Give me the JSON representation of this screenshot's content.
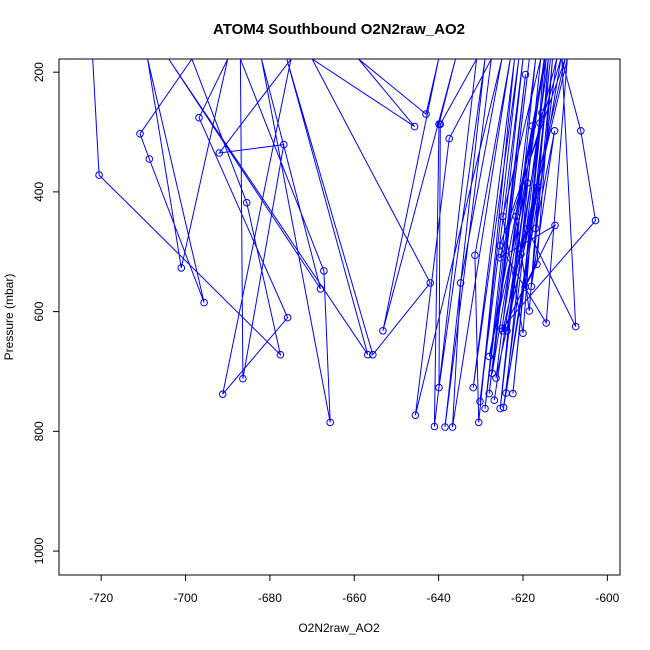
{
  "chart_data": {
    "type": "line",
    "title": "ATOM4 Southbound O2N2raw_AO2",
    "xlabel": "O2N2raw_AO2",
    "ylabel": "Pressure (mbar)",
    "xlim": [
      -730,
      -597
    ],
    "ylim": [
      1040,
      178
    ],
    "y_reversed": true,
    "x_ticks": [
      -720,
      -700,
      -680,
      -660,
      -640,
      -620,
      -600
    ],
    "y_ticks": [
      200,
      400,
      600,
      800,
      1000
    ],
    "grid": false,
    "series_color": "#0000ff",
    "series": [
      {
        "points": [
          [
            -722.0,
            178
          ],
          [
            -720.5,
            372
          ],
          [
            -677.5,
            672
          ],
          [
            -685.5,
            418
          ],
          [
            -698.5,
            178
          ],
          [
            -710.8,
            303
          ],
          [
            -708.6,
            345
          ],
          [
            -695.6,
            585
          ],
          [
            -709.0,
            178
          ],
          [
            -701.0,
            527
          ],
          [
            -690.0,
            178
          ],
          [
            -696.8,
            276
          ],
          [
            -675.8,
            610
          ],
          [
            -691.2,
            738
          ],
          [
            -675.0,
            178
          ],
          [
            -692.0,
            335
          ],
          [
            -676.7,
            321
          ],
          [
            -686.4,
            712
          ],
          [
            -687.0,
            178
          ],
          [
            -667.2,
            532
          ],
          [
            -665.7,
            785
          ],
          [
            -682.0,
            178
          ],
          [
            -668.0,
            562
          ],
          [
            -704.0,
            178
          ],
          [
            -656.8,
            672
          ],
          [
            -676.0,
            178
          ],
          [
            -655.6,
            672
          ],
          [
            -642.0,
            552
          ],
          [
            -670.0,
            178
          ],
          [
            -645.7,
            291
          ],
          [
            -659.0,
            178
          ],
          [
            -643.0,
            270
          ],
          [
            -640.0,
            178
          ],
          [
            -653.2,
            632
          ],
          [
            -636.0,
            178
          ],
          [
            -639.9,
            287
          ],
          [
            -641.0,
            792
          ],
          [
            -631.0,
            178
          ],
          [
            -639.6,
            287
          ],
          [
            -639.9,
            727
          ],
          [
            -629.0,
            178
          ],
          [
            -638.5,
            793
          ],
          [
            -627.5,
            178
          ],
          [
            -637.5,
            311
          ],
          [
            -645.5,
            773
          ],
          [
            -625.0,
            178
          ],
          [
            -634.8,
            552
          ],
          [
            -636.7,
            793
          ],
          [
            -623.0,
            178
          ],
          [
            -631.4,
            506
          ],
          [
            -630.5,
            785
          ],
          [
            -622.0,
            178
          ],
          [
            -631.8,
            727
          ],
          [
            -621.0,
            178
          ],
          [
            -630.2,
            750
          ],
          [
            -620.0,
            178
          ],
          [
            -629.0,
            762
          ],
          [
            -619.4,
            204
          ],
          [
            -628.0,
            737
          ],
          [
            -618.5,
            178
          ],
          [
            -627.3,
            703
          ],
          [
            -617.8,
            290
          ],
          [
            -625.4,
            762
          ],
          [
            -617.0,
            178
          ],
          [
            -626.4,
            711
          ],
          [
            -616.5,
            392
          ],
          [
            -624.0,
            736
          ],
          [
            -615.8,
            178
          ],
          [
            -624.8,
            441
          ],
          [
            -620.0,
            636
          ],
          [
            -615.0,
            178
          ],
          [
            -623.8,
            632
          ],
          [
            -615.5,
            268
          ],
          [
            -622.4,
            737
          ],
          [
            -614.5,
            178
          ],
          [
            -621.6,
            441
          ],
          [
            -618.5,
            599
          ],
          [
            -614.0,
            178
          ],
          [
            -620.5,
            504
          ],
          [
            -616.9,
            415
          ],
          [
            -613.5,
            178
          ],
          [
            -619.5,
            559
          ],
          [
            -616.7,
            521
          ],
          [
            -613.0,
            178
          ],
          [
            -618.0,
            558
          ],
          [
            -612.5,
            298
          ],
          [
            -617.0,
            461
          ],
          [
            -612.0,
            178
          ],
          [
            -616.0,
            285
          ],
          [
            -624.6,
            760
          ],
          [
            -611.0,
            178
          ],
          [
            -625.5,
            510
          ],
          [
            -612.4,
            456
          ],
          [
            -624.8,
            632
          ],
          [
            -610.0,
            178
          ],
          [
            -625.5,
            490
          ],
          [
            -614.5,
            619
          ],
          [
            -609.5,
            178
          ],
          [
            -619.0,
            462
          ],
          [
            -607.5,
            625
          ],
          [
            -610.8,
            178
          ],
          [
            -606.3,
            298
          ],
          [
            -602.8,
            448
          ],
          [
            -625.0,
            628
          ],
          [
            -614.8,
            178
          ],
          [
            -628.0,
            675
          ],
          [
            -619.0,
            385
          ],
          [
            -626.8,
            748
          ]
        ]
      }
    ]
  }
}
